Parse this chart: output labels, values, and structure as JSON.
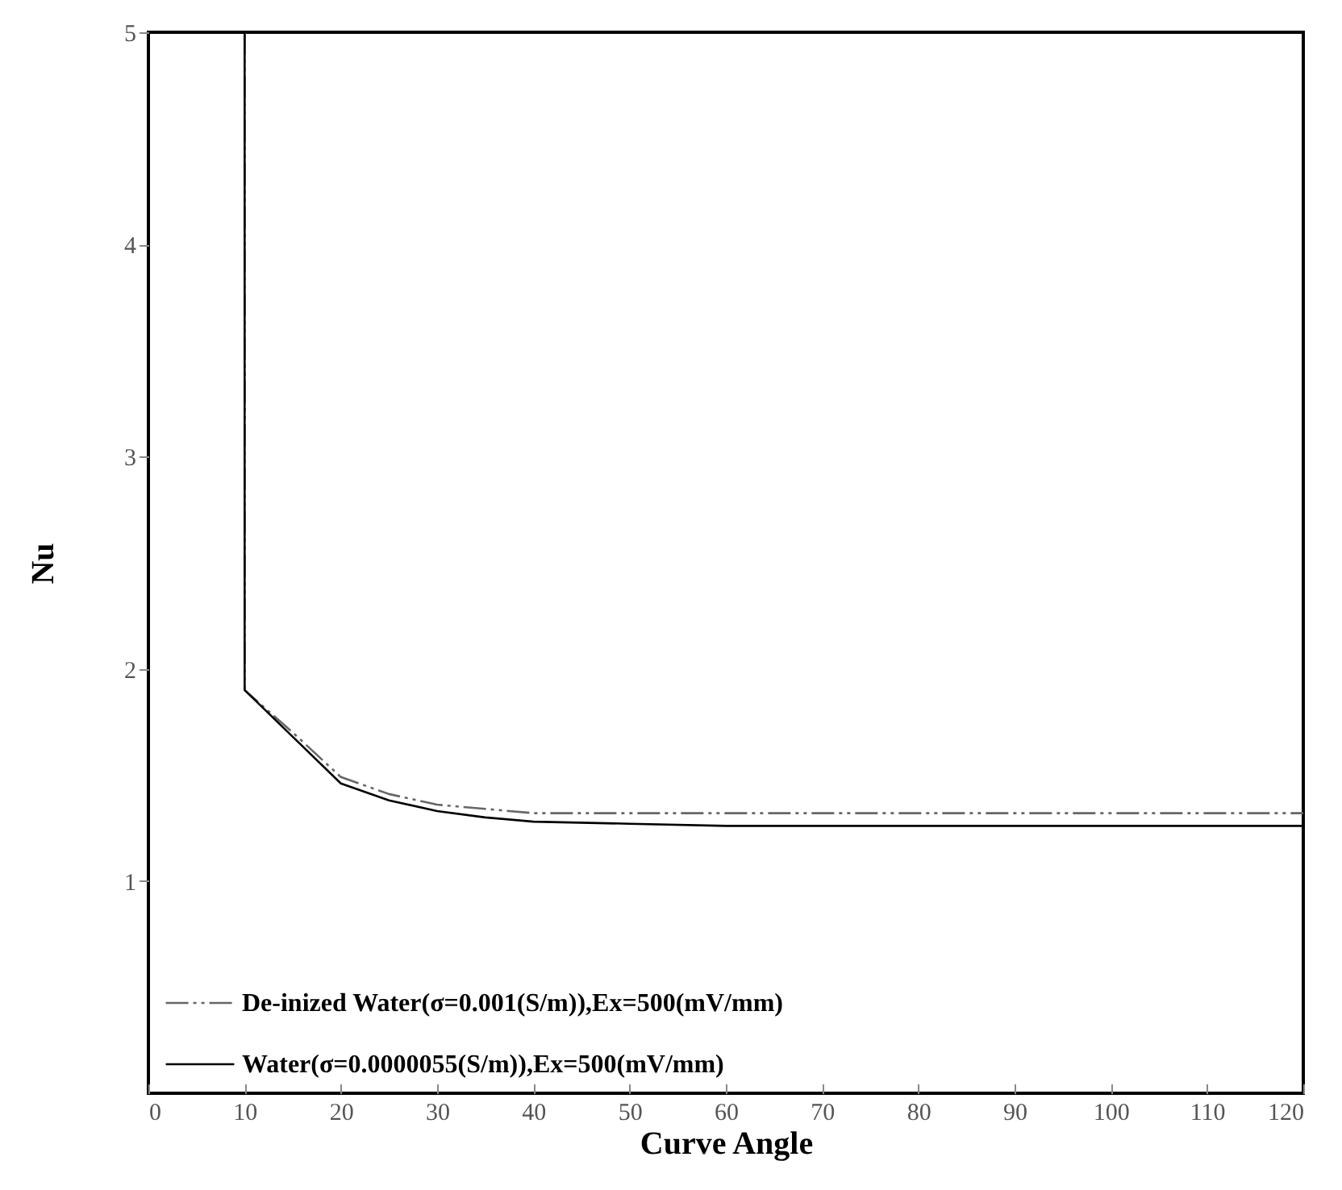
{
  "chart_data": {
    "type": "line",
    "xlabel": "Curve Angle",
    "ylabel": "Nu",
    "x": [
      10,
      10,
      15,
      20,
      25,
      30,
      35,
      40,
      50,
      60,
      70,
      80,
      90,
      100,
      110,
      120
    ],
    "series": [
      {
        "name": "De-inized Water(σ=0.001(S/m)),Ex=500(mV/mm)",
        "color": "#666666",
        "line_style": "dashed",
        "values": [
          5,
          1.9,
          1.7,
          1.49,
          1.41,
          1.36,
          1.34,
          1.32,
          1.32,
          1.32,
          1.32,
          1.32,
          1.32,
          1.32,
          1.32,
          1.32
        ]
      },
      {
        "name": "Water(σ=0.0000055(S/m)),Ex=500(mV/mm)",
        "color": "#000000",
        "line_style": "solid",
        "values": [
          5,
          1.9,
          1.68,
          1.46,
          1.38,
          1.33,
          1.3,
          1.28,
          1.27,
          1.26,
          1.26,
          1.26,
          1.26,
          1.26,
          1.26,
          1.26
        ]
      }
    ],
    "xlim": [
      0,
      120
    ],
    "xticks": [
      0,
      10,
      20,
      30,
      40,
      50,
      60,
      70,
      80,
      90,
      100,
      110,
      120
    ],
    "ylim": [
      0,
      5
    ],
    "yticks": [
      1,
      2,
      3,
      4,
      5
    ],
    "legend": "bottom left"
  }
}
